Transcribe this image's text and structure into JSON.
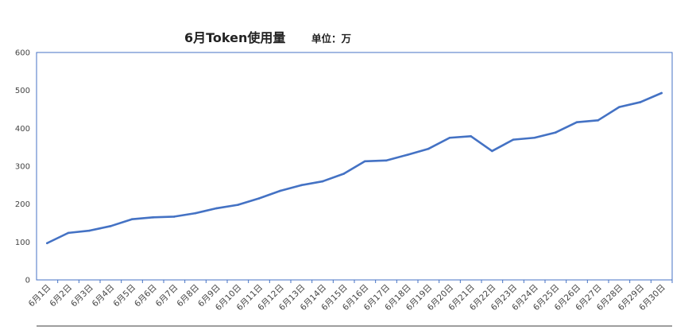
{
  "chart_data": {
    "type": "line",
    "title": "6月Token使用量",
    "unit_label": "单位：万",
    "xlabel": "",
    "ylabel": "",
    "ylim": [
      0,
      600
    ],
    "yticks": [
      0,
      100,
      200,
      300,
      400,
      500,
      600
    ],
    "grid": false,
    "legend": "none",
    "line_color": "#4472C4",
    "axis_color": "#4472C4",
    "categories": [
      "6月1日",
      "6月2日",
      "6月3日",
      "6月4日",
      "6月5日",
      "6月6日",
      "6月7日",
      "6月8日",
      "6月9日",
      "6月10日",
      "6月11日",
      "6月12日",
      "6月13日",
      "6月14日",
      "6月15日",
      "6月16日",
      "6月17日",
      "6月18日",
      "6月19日",
      "6月20日",
      "6月21日",
      "6月22日",
      "6月23日",
      "6月24日",
      "6月25日",
      "6月26日",
      "6月27日",
      "6月28日",
      "6月29日",
      "6月30日"
    ],
    "values": [
      97,
      124,
      130,
      142,
      160,
      165,
      167,
      176,
      189,
      198,
      215,
      235,
      250,
      260,
      280,
      313,
      315,
      330,
      346,
      375,
      379,
      340,
      370,
      375,
      389,
      416,
      421,
      456,
      469,
      493
    ]
  }
}
